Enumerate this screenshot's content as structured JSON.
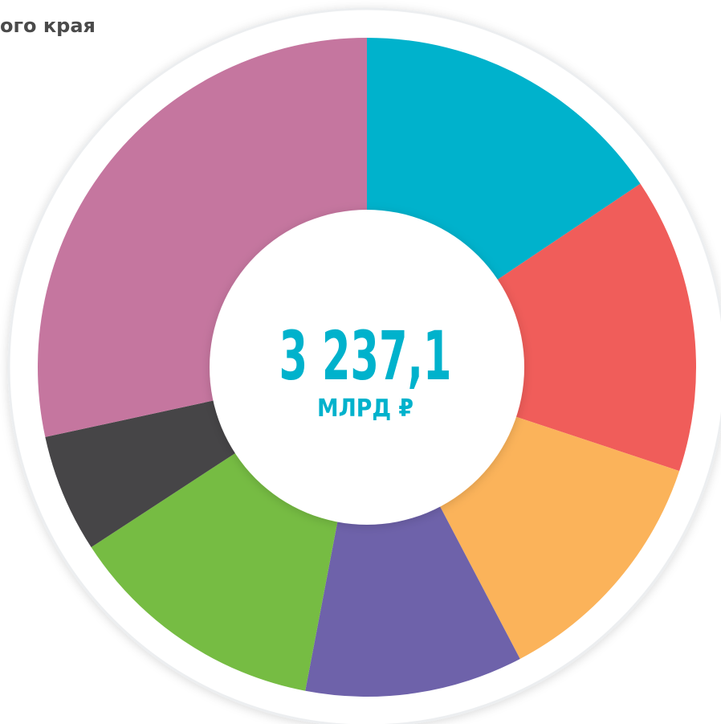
{
  "chart_data": {
    "type": "donut",
    "title": "ого края",
    "center_value": "3 237,1",
    "center_unit": "МЛРД ₽",
    "values": [
      15.6,
      14.5,
      12.2,
      10.7,
      12.8,
      5.8,
      28.4
    ],
    "colors": [
      "#00b2cc",
      "#f05d5a",
      "#fbb35a",
      "#6e62aa",
      "#76bc43",
      "#464547",
      "#c5769f"
    ]
  }
}
